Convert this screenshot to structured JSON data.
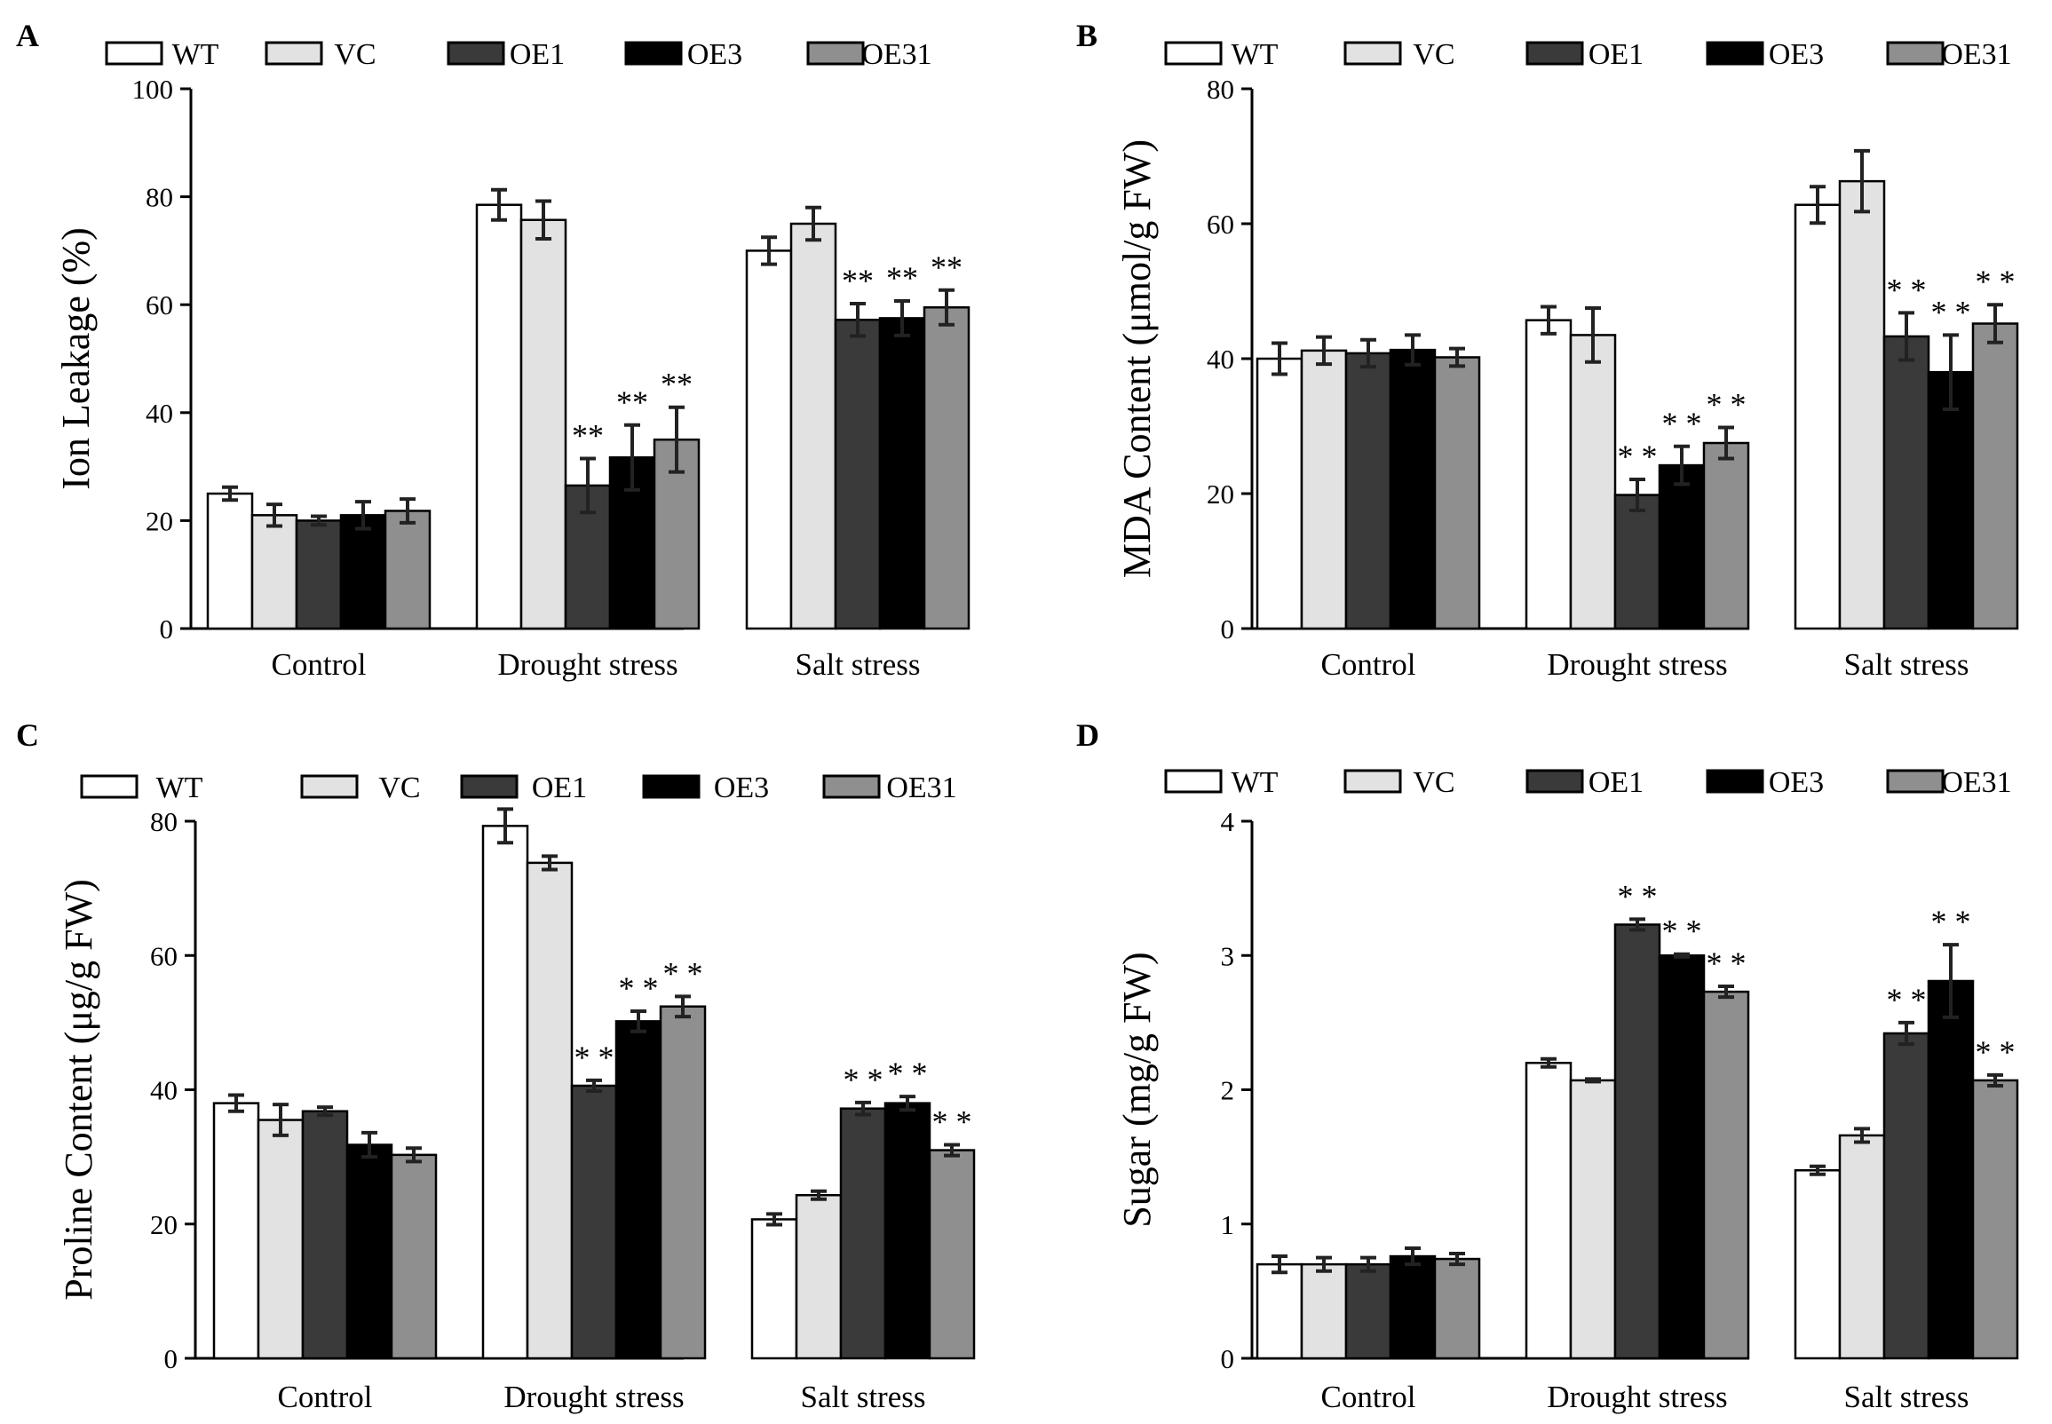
{
  "legend": {
    "items": [
      {
        "label": "WT",
        "color": "#ffffff"
      },
      {
        "label": "VC",
        "color": "#e2e2e2"
      },
      {
        "label": "OE1",
        "color": "#3a3a3a"
      },
      {
        "label": "OE3",
        "color": "#000000"
      },
      {
        "label": "OE31",
        "color": "#8f8f8f"
      }
    ]
  },
  "chart_data": [
    {
      "panel": "A",
      "type": "bar",
      "ylabel": "Ion Leakage (%)",
      "ylim": [
        0,
        100
      ],
      "yticks": [
        "0",
        "20",
        "40",
        "60",
        "80",
        "100"
      ],
      "categories": [
        "Control",
        "Drought stress",
        "Salt stress"
      ],
      "series": [
        {
          "name": "WT",
          "values": [
            25,
            78.5,
            70
          ],
          "errors": [
            1.2,
            2.8,
            2.5
          ],
          "sig": [
            "",
            "",
            ""
          ]
        },
        {
          "name": "VC",
          "values": [
            21,
            75.7,
            75
          ],
          "errors": [
            2.0,
            3.5,
            3.0
          ],
          "sig": [
            "",
            "",
            ""
          ]
        },
        {
          "name": "OE1",
          "values": [
            20,
            26.5,
            57.2
          ],
          "errors": [
            0.8,
            5.0,
            3.0
          ],
          "sig": [
            "",
            "**",
            "**"
          ]
        },
        {
          "name": "OE3",
          "values": [
            21,
            31.7,
            57.5
          ],
          "errors": [
            2.5,
            6.0,
            3.2
          ],
          "sig": [
            "",
            "**",
            "**"
          ]
        },
        {
          "name": "OE31",
          "values": [
            21.8,
            35,
            59.5
          ],
          "errors": [
            2.2,
            6.0,
            3.2
          ],
          "sig": [
            "",
            "**",
            "**"
          ]
        }
      ]
    },
    {
      "panel": "B",
      "type": "bar",
      "ylabel": "MDA Content (μmol/g FW)",
      "ylim": [
        0,
        80
      ],
      "yticks": [
        "0",
        "20",
        "40",
        "60",
        "80"
      ],
      "categories": [
        "Control",
        "Drought stress",
        "Salt stress"
      ],
      "series": [
        {
          "name": "WT",
          "values": [
            40,
            45.7,
            62.8
          ],
          "errors": [
            2.3,
            2.0,
            2.7
          ],
          "sig": [
            "",
            "",
            ""
          ]
        },
        {
          "name": "VC",
          "values": [
            41.2,
            43.5,
            66.3
          ],
          "errors": [
            2.0,
            4.0,
            4.5
          ],
          "sig": [
            "",
            "",
            ""
          ]
        },
        {
          "name": "OE1",
          "values": [
            40.8,
            19.8,
            43.3
          ],
          "errors": [
            2.0,
            2.3,
            3.5
          ],
          "sig": [
            "",
            "* *",
            "* *"
          ]
        },
        {
          "name": "OE3",
          "values": [
            41.3,
            24.2,
            38
          ],
          "errors": [
            2.2,
            2.8,
            5.5
          ],
          "sig": [
            "",
            "* *",
            "* *"
          ]
        },
        {
          "name": "OE31",
          "values": [
            40.2,
            27.5,
            45.2
          ],
          "errors": [
            1.3,
            2.3,
            2.8
          ],
          "sig": [
            "",
            "* *",
            "* *"
          ]
        }
      ]
    },
    {
      "panel": "C",
      "type": "bar",
      "ylabel": "Proline Content (μg/g FW)",
      "ylim": [
        0,
        85
      ],
      "yticks": [
        "0",
        "20",
        "40",
        "60",
        "80"
      ],
      "categories": [
        "Control",
        "Drought stress",
        "Salt stress"
      ],
      "series": [
        {
          "name": "WT",
          "values": [
            38,
            79.3,
            20.7
          ],
          "errors": [
            1.2,
            2.5,
            0.8
          ],
          "sig": [
            "",
            "",
            ""
          ]
        },
        {
          "name": "VC",
          "values": [
            35.5,
            73.8,
            24.3
          ],
          "errors": [
            2.3,
            1.0,
            0.6
          ],
          "sig": [
            "",
            "",
            ""
          ]
        },
        {
          "name": "OE1",
          "values": [
            36.8,
            40.6,
            37.2
          ],
          "errors": [
            0.6,
            0.8,
            0.9
          ],
          "sig": [
            "",
            "* *",
            "* *"
          ]
        },
        {
          "name": "OE3",
          "values": [
            31.8,
            50.2,
            38
          ],
          "errors": [
            1.8,
            1.5,
            1.0
          ],
          "sig": [
            "",
            "* *",
            "* *"
          ]
        },
        {
          "name": "OE31",
          "values": [
            30.3,
            52.4,
            31
          ],
          "errors": [
            1.0,
            1.5,
            0.8
          ],
          "sig": [
            "",
            "* *",
            "* *"
          ]
        }
      ]
    },
    {
      "panel": "D",
      "type": "bar",
      "ylabel": "Sugar (mg/g FW)",
      "ylim": [
        0,
        4
      ],
      "yticks": [
        "0",
        "1",
        "2",
        "3",
        "4"
      ],
      "categories": [
        "Control",
        "Drought stress",
        "Salt stress"
      ],
      "series": [
        {
          "name": "WT",
          "values": [
            0.7,
            2.2,
            1.4
          ],
          "errors": [
            0.06,
            0.03,
            0.03
          ],
          "sig": [
            "",
            "",
            ""
          ]
        },
        {
          "name": "VC",
          "values": [
            0.7,
            2.07,
            1.66
          ],
          "errors": [
            0.05,
            0.01,
            0.05
          ],
          "sig": [
            "",
            "",
            ""
          ]
        },
        {
          "name": "OE1",
          "values": [
            0.7,
            3.23,
            2.42
          ],
          "errors": [
            0.05,
            0.04,
            0.08
          ],
          "sig": [
            "",
            "* *",
            "* *"
          ]
        },
        {
          "name": "OE3",
          "values": [
            0.76,
            3.0,
            2.81
          ],
          "errors": [
            0.06,
            0.01,
            0.27
          ],
          "sig": [
            "",
            "* *",
            "* *"
          ]
        },
        {
          "name": "OE31",
          "values": [
            0.74,
            2.73,
            2.07
          ],
          "errors": [
            0.04,
            0.04,
            0.04
          ],
          "sig": [
            "",
            "* *",
            "* *"
          ]
        }
      ]
    }
  ]
}
